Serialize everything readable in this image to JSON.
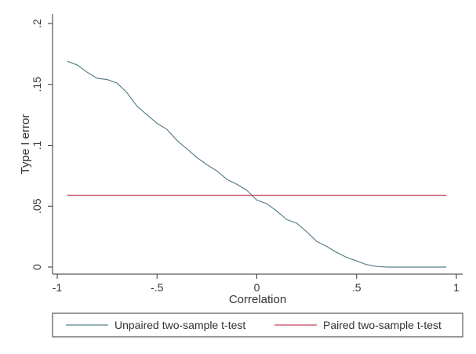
{
  "chart_data": {
    "type": "line",
    "title": "",
    "xlabel": "Correlation",
    "ylabel": "Type I error",
    "xlim": [
      -1,
      1
    ],
    "ylim": [
      0,
      0.2
    ],
    "grid": false,
    "legend_position": "bottom",
    "x_ticks": [
      {
        "value": -1,
        "label": "-1"
      },
      {
        "value": -0.5,
        "label": "-.5"
      },
      {
        "value": 0,
        "label": "0"
      },
      {
        "value": 0.5,
        "label": ".5"
      },
      {
        "value": 1,
        "label": "1"
      }
    ],
    "y_ticks": [
      {
        "value": 0,
        "label": "0"
      },
      {
        "value": 0.05,
        "label": ".05"
      },
      {
        "value": 0.1,
        "label": ".1"
      },
      {
        "value": 0.15,
        "label": ".15"
      },
      {
        "value": 0.2,
        "label": ".2"
      }
    ],
    "series": [
      {
        "name": "Unpaired two-sample t-test",
        "color": "#5b7f8c",
        "points": [
          [
            -0.95,
            0.169
          ],
          [
            -0.9,
            0.166
          ],
          [
            -0.85,
            0.16
          ],
          [
            -0.8,
            0.155
          ],
          [
            -0.75,
            0.154
          ],
          [
            -0.7,
            0.151
          ],
          [
            -0.65,
            0.143
          ],
          [
            -0.6,
            0.132
          ],
          [
            -0.55,
            0.125
          ],
          [
            -0.5,
            0.118
          ],
          [
            -0.45,
            0.113
          ],
          [
            -0.4,
            0.104
          ],
          [
            -0.35,
            0.097
          ],
          [
            -0.3,
            0.09
          ],
          [
            -0.25,
            0.084
          ],
          [
            -0.2,
            0.079
          ],
          [
            -0.15,
            0.072
          ],
          [
            -0.1,
            0.068
          ],
          [
            -0.05,
            0.063
          ],
          [
            0.0,
            0.055
          ],
          [
            0.05,
            0.052
          ],
          [
            0.1,
            0.046
          ],
          [
            0.15,
            0.039
          ],
          [
            0.2,
            0.036
          ],
          [
            0.25,
            0.029
          ],
          [
            0.3,
            0.021
          ],
          [
            0.35,
            0.017
          ],
          [
            0.4,
            0.012
          ],
          [
            0.45,
            0.008
          ],
          [
            0.5,
            0.005
          ],
          [
            0.55,
            0.002
          ],
          [
            0.6,
            0.0005
          ],
          [
            0.65,
            0.0
          ],
          [
            0.7,
            0.0
          ],
          [
            0.75,
            0.0
          ],
          [
            0.8,
            0.0
          ],
          [
            0.85,
            0.0
          ],
          [
            0.9,
            0.0
          ],
          [
            0.95,
            0.0
          ]
        ]
      },
      {
        "name": "Paired two-sample t-test",
        "color": "#c7465f",
        "points": [
          [
            -0.95,
            0.059
          ],
          [
            0.95,
            0.059
          ]
        ]
      }
    ]
  }
}
